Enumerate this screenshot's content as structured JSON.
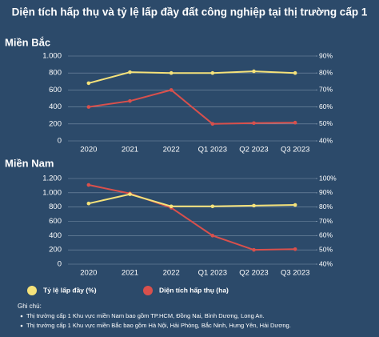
{
  "title": "Diện tích hấp thụ và tỷ lệ lấp đầy đất công nghiệp tại thị trường cấp 1",
  "chart_data": [
    {
      "type": "line",
      "title": "Miền Bắc",
      "categories": [
        "2020",
        "2021",
        "2022",
        "Q1 2023",
        "Q2 2023",
        "Q3 2023"
      ],
      "series": [
        {
          "name": "Tỷ lệ lấp đầy (%)",
          "color": "#f5e27a",
          "axis": "y2",
          "values": [
            74,
            80.5,
            80,
            80,
            81,
            80
          ]
        },
        {
          "name": "Diện tích hấp thụ (ha)",
          "color": "#d9504c",
          "values": [
            400,
            470,
            600,
            200,
            210,
            215
          ]
        }
      ],
      "ylim": [
        0,
        1000
      ],
      "yticks": [
        0,
        200,
        400,
        600,
        800,
        {
          "value": 1000,
          "label": "1.000"
        }
      ],
      "y2lim": [
        40,
        90
      ],
      "y2ticks": [
        {
          "value": 40,
          "label": "40%"
        },
        {
          "value": 50,
          "label": "50%"
        },
        {
          "value": 60,
          "label": "60%"
        },
        {
          "value": 70,
          "label": "70%"
        },
        {
          "value": 80,
          "label": "80%"
        },
        {
          "value": 90,
          "label": "90%"
        }
      ],
      "grid": true
    },
    {
      "type": "line",
      "title": "Miền Nam",
      "categories": [
        "2020",
        "2021",
        "2022",
        "Q1 2023",
        "Q2 2023",
        "Q3 2023"
      ],
      "series": [
        {
          "color": "#f5e27a",
          "axis": "y2",
          "values": [
            82.5,
            89,
            80.5,
            80.5,
            81,
            81.5
          ]
        },
        {
          "color": "#d9504c",
          "values": [
            1110,
            990,
            790,
            400,
            200,
            210
          ]
        }
      ],
      "ylim": [
        0,
        1200
      ],
      "yticks": [
        0,
        200,
        400,
        600,
        800,
        {
          "value": 1000,
          "label": "1.000"
        },
        {
          "value": 1200,
          "label": "1.200"
        }
      ],
      "y2lim": [
        40,
        100
      ],
      "y2ticks": [
        {
          "value": 40,
          "label": "40%"
        },
        {
          "value": 50,
          "label": "50%"
        },
        {
          "value": 60,
          "label": "60%"
        },
        {
          "value": 70,
          "label": "70%"
        },
        {
          "value": 80,
          "label": "80%"
        },
        {
          "value": 90,
          "label": "90%"
        },
        {
          "value": 100,
          "label": "100%"
        }
      ],
      "grid": true
    }
  ],
  "notes": {
    "heading": "Ghi chú:",
    "items": [
      "Thị trường cấp 1 Khu vực miền Nam bao gồm TP.HCM, Đồng Nai, Bình Dương, Long An.",
      "Thị trường cấp 1 Khu vực miền Bắc bao gồm Hà Nội, Hải Phòng, Bắc Ninh, Hưng Yên, Hải Dương."
    ]
  }
}
